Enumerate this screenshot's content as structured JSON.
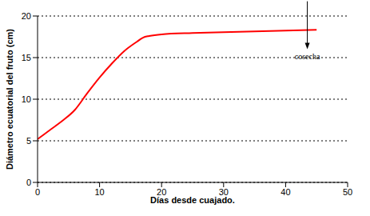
{
  "chart_data": {
    "type": "line",
    "x_label": "Días desde cuajado.",
    "y_label": "Diámetro ecuatorial del fruto (cm)",
    "x": [
      0,
      2,
      4,
      6,
      8,
      10,
      12,
      14,
      16,
      17,
      18,
      20,
      25,
      30,
      35,
      40,
      45
    ],
    "series": [
      {
        "name": "Diámetro ecuatorial",
        "color": "#ff0000",
        "values": [
          5.2,
          6.3,
          7.4,
          8.7,
          10.7,
          12.6,
          14.3,
          15.8,
          16.9,
          17.4,
          17.6,
          17.8,
          17.95,
          18.05,
          18.15,
          18.25,
          18.35
        ]
      }
    ],
    "xlim": [
      0,
      50
    ],
    "xticks": [
      0,
      10,
      20,
      30,
      40,
      50
    ],
    "ylim": [
      0,
      20
    ],
    "yticks": [
      0,
      5,
      10,
      15,
      20
    ],
    "grid": true,
    "annotations": [
      {
        "text": "cosecha",
        "x": 43.5,
        "y": 16
      }
    ]
  }
}
